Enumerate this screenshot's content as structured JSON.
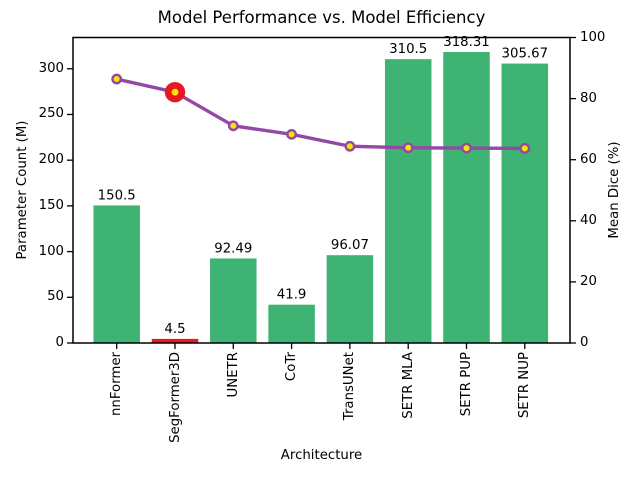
{
  "chart_data": {
    "type": "bar",
    "title": "Model Performance vs. Model Efficiency",
    "xlabel": "Architecture",
    "ylabel_left": "Parameter Count (M)",
    "ylabel_right": "Mean Dice (%)",
    "categories": [
      "nnFormer",
      "SegFormer3D",
      "UNETR",
      "CoTr",
      "TransUNet",
      "SETR MLA",
      "SETR PUP",
      "SETR NUP"
    ],
    "series": [
      {
        "name": "Parameter Count (M)",
        "type": "bar",
        "values": [
          150.5,
          4.5,
          92.49,
          41.9,
          96.07,
          310.5,
          318.31,
          305.67
        ],
        "bar_labels": [
          "150.5",
          "4.5",
          "92.49",
          "41.9",
          "96.07",
          "310.5",
          "318.31",
          "305.67"
        ],
        "highlight_index": 1
      },
      {
        "name": "Mean Dice (%)",
        "type": "line",
        "values": [
          86.4,
          82.1,
          71.1,
          68.3,
          64.4,
          63.9,
          63.8,
          63.7
        ],
        "highlight_index": 1
      }
    ],
    "ylim_left": [
      0,
      334.2
    ],
    "yticks_left": [
      0,
      50,
      100,
      150,
      200,
      250,
      300
    ],
    "yticks_left_labels": [
      "0",
      "50",
      "100",
      "150",
      "200",
      "250",
      "300"
    ],
    "ylim_right": [
      0,
      100
    ],
    "yticks_right": [
      0,
      20,
      40,
      60,
      80,
      100
    ],
    "yticks_right_labels": [
      "0",
      "20",
      "40",
      "60",
      "80",
      "100"
    ],
    "grid": false,
    "legend": null,
    "colors": {
      "bar": "#3fb374",
      "bar_highlight": "#e6191e",
      "line": "#9348a5",
      "marker_fill": "#f9e400",
      "marker_edge": "#9348a5",
      "highlight_ring": "#e6191e",
      "axis": "#000000"
    }
  }
}
